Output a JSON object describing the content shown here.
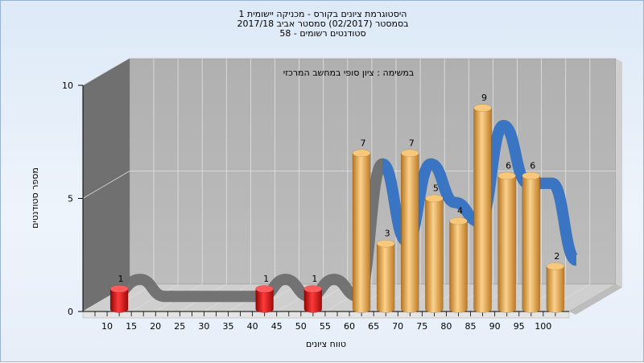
{
  "chart_data": {
    "type": "bar",
    "title_lines": [
      "היסטוגרמת ציונים בקורס - מכניקה יישומית 1",
      "בסמסטר  (02/2017)  סמסטר אביב 2017/18",
      "סטודנטים רשומים - 58"
    ],
    "annotation": "במשימה : ציון סופי במחשב המרכזי",
    "xlabel": "טווח ציונים",
    "ylabel": "מספר סטודנטים",
    "x_ticks": [
      "10",
      "15",
      "20",
      "25",
      "30",
      "35",
      "40",
      "45",
      "50",
      "55",
      "60",
      "65",
      "70",
      "75",
      "80",
      "85",
      "90",
      "95",
      "100"
    ],
    "y_ticks": [
      "0",
      "5",
      "10"
    ],
    "ylim": [
      0,
      10
    ],
    "bins": [
      {
        "x": 12.5,
        "value": 1,
        "label": "1",
        "color": "#dd1a1a"
      },
      {
        "x": 42.5,
        "value": 1,
        "label": "1",
        "color": "#dd1a1a"
      },
      {
        "x": 52.5,
        "value": 1,
        "label": "1",
        "color": "#dd1a1a"
      },
      {
        "x": 62.5,
        "value": 7,
        "label": "7",
        "color": "#e9a53f"
      },
      {
        "x": 67.5,
        "value": 3,
        "label": "3",
        "color": "#e9a53f"
      },
      {
        "x": 72.5,
        "value": 7,
        "label": "7",
        "color": "#e9a53f"
      },
      {
        "x": 77.5,
        "value": 5,
        "label": "5",
        "color": "#e9a53f"
      },
      {
        "x": 82.5,
        "value": 4,
        "label": "4",
        "color": "#e9a53f"
      },
      {
        "x": 87.5,
        "value": 9,
        "label": "9",
        "color": "#e9a53f"
      },
      {
        "x": 92.5,
        "value": 6,
        "label": "6",
        "color": "#e9a53f"
      },
      {
        "x": 97.5,
        "value": 6,
        "label": "6",
        "color": "#e9a53f"
      },
      {
        "x": 102.5,
        "value": 2,
        "label": "2",
        "color": "#e9a53f"
      }
    ],
    "ribbon_color_fail": "#6e6e6e",
    "ribbon_color_pass": "#3a75c4",
    "colors": {
      "back_wall": "#b4b4b4",
      "side_wall": "#707070",
      "floor": "#d0d0d0"
    }
  }
}
